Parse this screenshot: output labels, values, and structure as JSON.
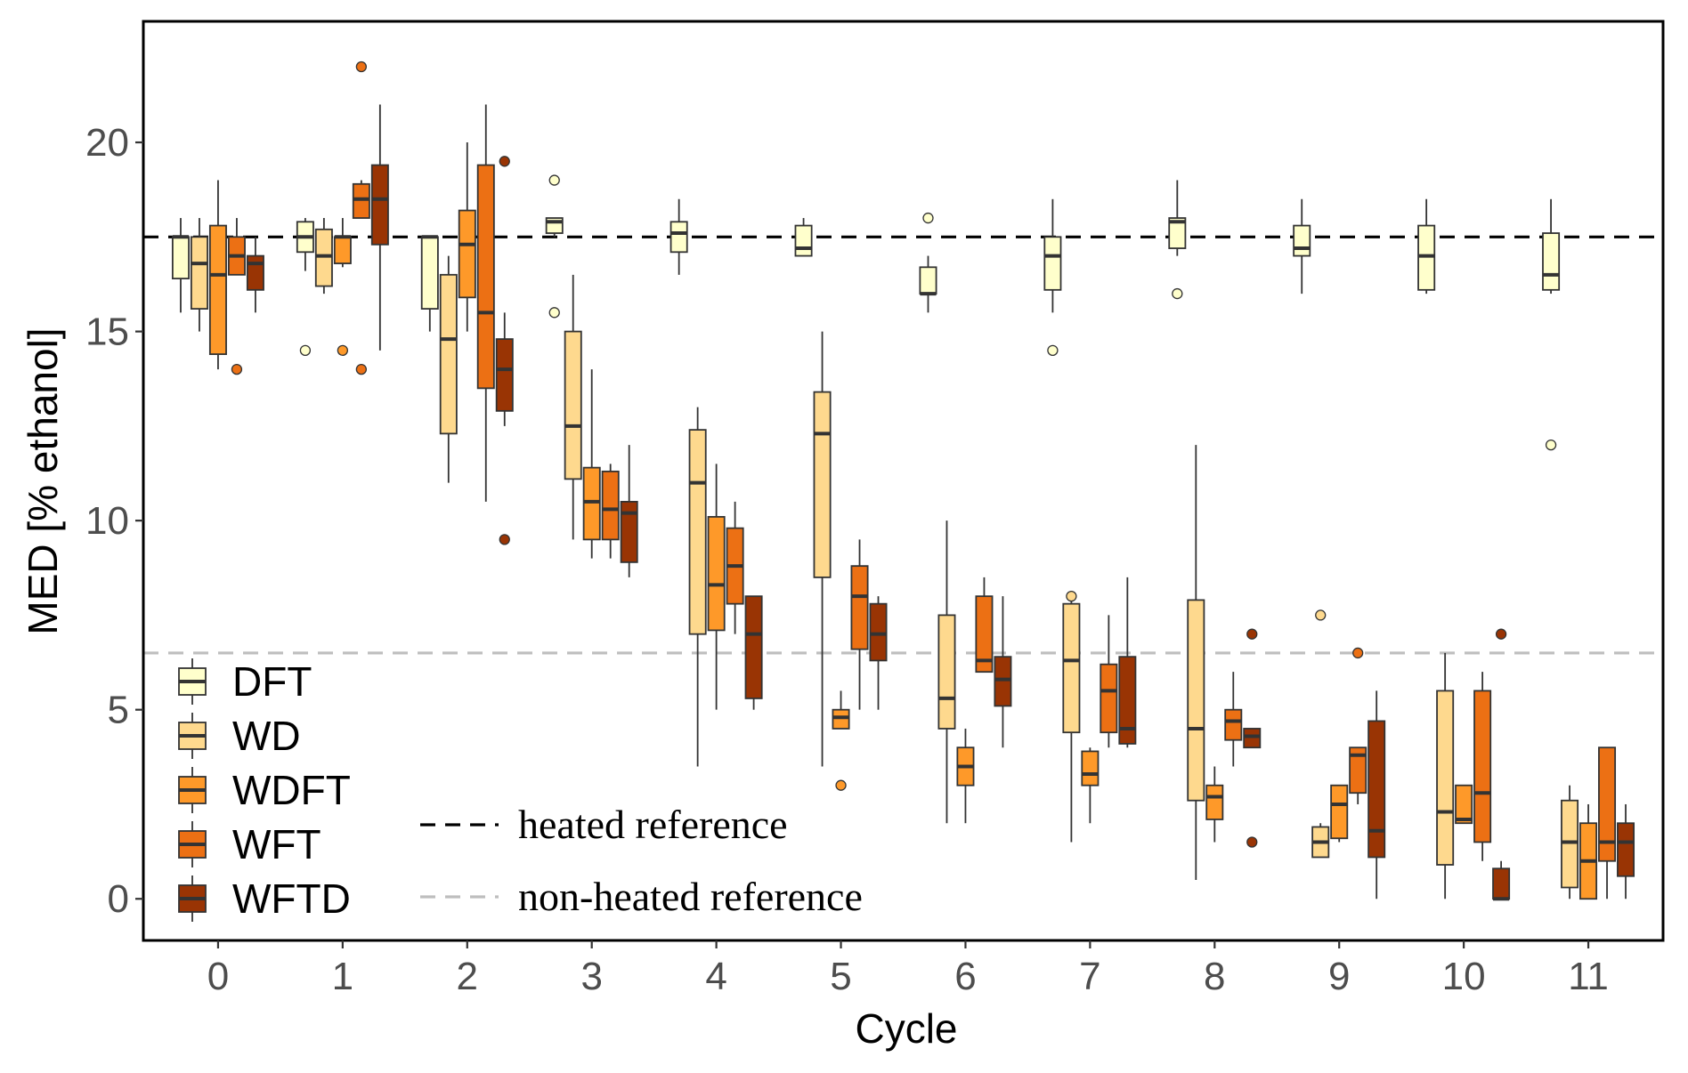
{
  "chart_data": {
    "type": "boxplot",
    "xlabel": "Cycle",
    "ylabel": "MED [% ethanol]",
    "categories": [
      "0",
      "1",
      "2",
      "3",
      "4",
      "5",
      "6",
      "7",
      "8",
      "9",
      "10",
      "11"
    ],
    "yticks": [
      "0",
      "5",
      "10",
      "15",
      "20"
    ],
    "ylim": [
      -1.1,
      23.2
    ],
    "xlim": [
      -0.6,
      11.6
    ],
    "series": [
      {
        "name": "DFT",
        "color": "#FFFFCC",
        "offset": -0.3,
        "boxes": [
          {
            "cycle": 0,
            "low": 15.5,
            "q1": 16.4,
            "median": 17.5,
            "q3": 17.5,
            "high": 18.0,
            "outliers": []
          },
          {
            "cycle": 1,
            "low": 16.6,
            "q1": 17.1,
            "median": 17.5,
            "q3": 17.9,
            "high": 18.0,
            "outliers": [
              14.5
            ]
          },
          {
            "cycle": 2,
            "low": 15.0,
            "q1": 15.6,
            "median": 17.5,
            "q3": 17.5,
            "high": 17.5,
            "outliers": []
          },
          {
            "cycle": 3,
            "low": 17.5,
            "q1": 17.6,
            "median": 17.9,
            "q3": 18.0,
            "high": 18.0,
            "outliers": [
              15.5,
              19.0
            ]
          },
          {
            "cycle": 4,
            "low": 16.5,
            "q1": 17.1,
            "median": 17.6,
            "q3": 17.9,
            "high": 18.5,
            "outliers": []
          },
          {
            "cycle": 5,
            "low": 17.0,
            "q1": 17.0,
            "median": 17.2,
            "q3": 17.8,
            "high": 18.0,
            "outliers": []
          },
          {
            "cycle": 6,
            "low": 15.5,
            "q1": 16.0,
            "median": 16.0,
            "q3": 16.7,
            "high": 17.0,
            "outliers": [
              18.0
            ]
          },
          {
            "cycle": 7,
            "low": 15.5,
            "q1": 16.1,
            "median": 17.0,
            "q3": 17.5,
            "high": 18.5,
            "outliers": [
              14.5
            ]
          },
          {
            "cycle": 8,
            "low": 17.0,
            "q1": 17.2,
            "median": 17.9,
            "q3": 18.0,
            "high": 19.0,
            "outliers": [
              16.0
            ]
          },
          {
            "cycle": 9,
            "low": 16.0,
            "q1": 17.0,
            "median": 17.2,
            "q3": 17.8,
            "high": 18.5,
            "outliers": []
          },
          {
            "cycle": 10,
            "low": 16.0,
            "q1": 16.1,
            "median": 17.0,
            "q3": 17.8,
            "high": 18.5,
            "outliers": []
          },
          {
            "cycle": 11,
            "low": 16.0,
            "q1": 16.1,
            "median": 16.5,
            "q3": 17.6,
            "high": 18.5,
            "outliers": [
              12.0
            ]
          }
        ]
      },
      {
        "name": "WD",
        "color": "#FED98E",
        "offset": -0.15,
        "boxes": [
          {
            "cycle": 0,
            "low": 15.0,
            "q1": 15.6,
            "median": 16.8,
            "q3": 17.5,
            "high": 18.0,
            "outliers": []
          },
          {
            "cycle": 1,
            "low": 16.0,
            "q1": 16.2,
            "median": 17.0,
            "q3": 17.7,
            "high": 18.0,
            "outliers": []
          },
          {
            "cycle": 2,
            "low": 11.0,
            "q1": 12.3,
            "median": 14.8,
            "q3": 16.5,
            "high": 17.0,
            "outliers": []
          },
          {
            "cycle": 3,
            "low": 9.5,
            "q1": 11.1,
            "median": 12.5,
            "q3": 15.0,
            "high": 16.5,
            "outliers": []
          },
          {
            "cycle": 4,
            "low": 3.5,
            "q1": 7.0,
            "median": 11.0,
            "q3": 12.4,
            "high": 13.0,
            "outliers": []
          },
          {
            "cycle": 5,
            "low": 3.5,
            "q1": 8.5,
            "median": 12.3,
            "q3": 13.4,
            "high": 15.0,
            "outliers": []
          },
          {
            "cycle": 6,
            "low": 2.0,
            "q1": 4.5,
            "median": 5.3,
            "q3": 7.5,
            "high": 10.0,
            "outliers": []
          },
          {
            "cycle": 7,
            "low": 1.5,
            "q1": 4.4,
            "median": 6.3,
            "q3": 7.8,
            "high": 8.0,
            "outliers": [
              8.0
            ]
          },
          {
            "cycle": 8,
            "low": 0.5,
            "q1": 2.6,
            "median": 4.5,
            "q3": 7.9,
            "high": 12.0,
            "outliers": []
          },
          {
            "cycle": 9,
            "low": 1.1,
            "q1": 1.1,
            "median": 1.5,
            "q3": 1.9,
            "high": 2.0,
            "outliers": [
              7.5
            ]
          },
          {
            "cycle": 10,
            "low": 0.0,
            "q1": 0.9,
            "median": 2.3,
            "q3": 5.5,
            "high": 6.5,
            "outliers": []
          },
          {
            "cycle": 11,
            "low": 0.0,
            "q1": 0.3,
            "median": 1.5,
            "q3": 2.6,
            "high": 3.0,
            "outliers": []
          }
        ]
      },
      {
        "name": "WDFT",
        "color": "#FE9929",
        "offset": 0.0,
        "boxes": [
          {
            "cycle": 0,
            "low": 14.0,
            "q1": 14.4,
            "median": 16.5,
            "q3": 17.8,
            "high": 19.0,
            "outliers": []
          },
          {
            "cycle": 1,
            "low": 16.7,
            "q1": 16.8,
            "median": 17.5,
            "q3": 17.5,
            "high": 18.0,
            "outliers": [
              14.5
            ]
          },
          {
            "cycle": 2,
            "low": 15.0,
            "q1": 15.9,
            "median": 17.3,
            "q3": 18.2,
            "high": 20.0,
            "outliers": []
          },
          {
            "cycle": 3,
            "low": 9.0,
            "q1": 9.5,
            "median": 10.5,
            "q3": 11.4,
            "high": 14.0,
            "outliers": []
          },
          {
            "cycle": 4,
            "low": 5.0,
            "q1": 7.1,
            "median": 8.3,
            "q3": 10.1,
            "high": 11.5,
            "outliers": []
          },
          {
            "cycle": 5,
            "low": 4.5,
            "q1": 4.5,
            "median": 4.8,
            "q3": 5.0,
            "high": 5.5,
            "outliers": [
              3.0
            ]
          },
          {
            "cycle": 6,
            "low": 2.0,
            "q1": 3.0,
            "median": 3.5,
            "q3": 4.0,
            "high": 4.5,
            "outliers": []
          },
          {
            "cycle": 7,
            "low": 2.0,
            "q1": 3.0,
            "median": 3.3,
            "q3": 3.9,
            "high": 4.0,
            "outliers": []
          },
          {
            "cycle": 8,
            "low": 1.5,
            "q1": 2.1,
            "median": 2.7,
            "q3": 3.0,
            "high": 3.5,
            "outliers": []
          },
          {
            "cycle": 9,
            "low": 1.5,
            "q1": 1.6,
            "median": 2.5,
            "q3": 3.0,
            "high": 3.0,
            "outliers": []
          },
          {
            "cycle": 10,
            "low": 2.0,
            "q1": 2.0,
            "median": 2.1,
            "q3": 3.0,
            "high": 3.0,
            "outliers": []
          },
          {
            "cycle": 11,
            "low": 0.0,
            "q1": 0.0,
            "median": 1.0,
            "q3": 2.0,
            "high": 2.5,
            "outliers": []
          }
        ]
      },
      {
        "name": "WFT",
        "color": "#EC7014",
        "offset": 0.15,
        "boxes": [
          {
            "cycle": 0,
            "low": 16.5,
            "q1": 16.5,
            "median": 17.0,
            "q3": 17.5,
            "high": 18.0,
            "outliers": [
              14.0
            ]
          },
          {
            "cycle": 1,
            "low": 18.0,
            "q1": 18.0,
            "median": 18.5,
            "q3": 18.9,
            "high": 19.0,
            "outliers": [
              14.0,
              22.0
            ]
          },
          {
            "cycle": 2,
            "low": 10.5,
            "q1": 13.5,
            "median": 15.5,
            "q3": 19.4,
            "high": 21.0,
            "outliers": []
          },
          {
            "cycle": 3,
            "low": 9.0,
            "q1": 9.5,
            "median": 10.3,
            "q3": 11.3,
            "high": 11.5,
            "outliers": []
          },
          {
            "cycle": 4,
            "low": 7.0,
            "q1": 7.8,
            "median": 8.8,
            "q3": 9.8,
            "high": 10.5,
            "outliers": []
          },
          {
            "cycle": 5,
            "low": 5.0,
            "q1": 6.6,
            "median": 8.0,
            "q3": 8.8,
            "high": 9.5,
            "outliers": []
          },
          {
            "cycle": 6,
            "low": 6.0,
            "q1": 6.0,
            "median": 6.3,
            "q3": 8.0,
            "high": 8.5,
            "outliers": []
          },
          {
            "cycle": 7,
            "low": 4.0,
            "q1": 4.4,
            "median": 5.5,
            "q3": 6.2,
            "high": 7.5,
            "outliers": []
          },
          {
            "cycle": 8,
            "low": 3.5,
            "q1": 4.2,
            "median": 4.7,
            "q3": 5.0,
            "high": 6.0,
            "outliers": []
          },
          {
            "cycle": 9,
            "low": 2.5,
            "q1": 2.8,
            "median": 3.8,
            "q3": 4.0,
            "high": 4.0,
            "outliers": [
              6.5
            ]
          },
          {
            "cycle": 10,
            "low": 1.0,
            "q1": 1.5,
            "median": 2.8,
            "q3": 5.5,
            "high": 6.0,
            "outliers": []
          },
          {
            "cycle": 11,
            "low": 0.0,
            "q1": 1.0,
            "median": 1.5,
            "q3": 4.0,
            "high": 4.0,
            "outliers": []
          }
        ]
      },
      {
        "name": "WFTD",
        "color": "#993404",
        "offset": 0.3,
        "boxes": [
          {
            "cycle": 0,
            "low": 15.5,
            "q1": 16.1,
            "median": 16.8,
            "q3": 17.0,
            "high": 17.5,
            "outliers": []
          },
          {
            "cycle": 1,
            "low": 14.5,
            "q1": 17.3,
            "median": 18.5,
            "q3": 19.4,
            "high": 21.0,
            "outliers": []
          },
          {
            "cycle": 2,
            "low": 12.5,
            "q1": 12.9,
            "median": 14.0,
            "q3": 14.8,
            "high": 15.5,
            "outliers": [
              9.5,
              19.5
            ]
          },
          {
            "cycle": 3,
            "low": 8.5,
            "q1": 8.9,
            "median": 10.2,
            "q3": 10.5,
            "high": 12.0,
            "outliers": []
          },
          {
            "cycle": 4,
            "low": 5.0,
            "q1": 5.3,
            "median": 7.0,
            "q3": 8.0,
            "high": 8.0,
            "outliers": []
          },
          {
            "cycle": 5,
            "low": 5.0,
            "q1": 6.3,
            "median": 7.0,
            "q3": 7.8,
            "high": 8.0,
            "outliers": []
          },
          {
            "cycle": 6,
            "low": 4.0,
            "q1": 5.1,
            "median": 5.8,
            "q3": 6.4,
            "high": 8.0,
            "outliers": []
          },
          {
            "cycle": 7,
            "low": 4.0,
            "q1": 4.1,
            "median": 4.5,
            "q3": 6.4,
            "high": 8.5,
            "outliers": []
          },
          {
            "cycle": 8,
            "low": 4.0,
            "q1": 4.0,
            "median": 4.3,
            "q3": 4.5,
            "high": 4.5,
            "outliers": [
              1.5,
              7.0
            ]
          },
          {
            "cycle": 9,
            "low": 0.0,
            "q1": 1.1,
            "median": 1.8,
            "q3": 4.7,
            "high": 5.5,
            "outliers": []
          },
          {
            "cycle": 10,
            "low": 0.0,
            "q1": 0.0,
            "median": 0.0,
            "q3": 0.8,
            "high": 1.0,
            "outliers": [
              7.0
            ]
          },
          {
            "cycle": 11,
            "low": 0.0,
            "q1": 0.6,
            "median": 1.5,
            "q3": 2.0,
            "high": 2.5,
            "outliers": []
          }
        ]
      }
    ],
    "reference_lines": [
      {
        "name": "heated reference",
        "value": 17.5,
        "color": "#000000",
        "dash": "dashed"
      },
      {
        "name": "non-heated reference",
        "value": 6.5,
        "color": "#BEBEBE",
        "dash": "dashed"
      }
    ],
    "legend_position": "bottom-left",
    "grid": false
  }
}
